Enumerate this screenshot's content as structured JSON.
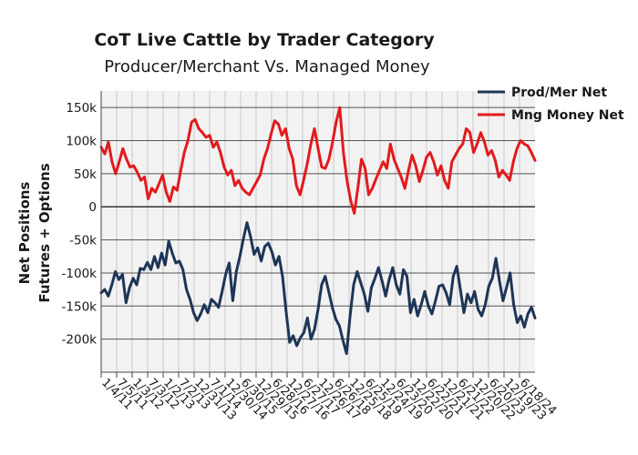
{
  "chart_data": {
    "type": "line",
    "title": "CoT Live Cattle by Trader Category",
    "subtitle": "Producer/Merchant Vs. Managed Money",
    "ylabel_lines": [
      "Net Positions",
      "Futures + Options"
    ],
    "xlabel": "",
    "ylim": [
      -250000,
      175000
    ],
    "y_ticks": [
      150000,
      100000,
      50000,
      0,
      -50000,
      -100000,
      -150000,
      -200000
    ],
    "y_tick_labels": [
      "150k",
      "100k",
      "50k",
      "0",
      "-50k",
      "-100k",
      "-150k",
      "-200k"
    ],
    "x_tick_labels": [
      "1/4/11",
      "7/5/11",
      "1/3/12",
      "7/3/12",
      "1/2/13",
      "7/2/13",
      "12/31/13",
      "7/1/14",
      "12/30/14",
      "6/30/15",
      "12/29/15",
      "6/28/16",
      "12/27/16",
      "6/27/17",
      "12/26/17",
      "6/26/18",
      "12/25/18",
      "6/25/19",
      "12/24/19",
      "6/23/20",
      "12/22/20",
      "6/22/21",
      "12/21/21",
      "6/21/22",
      "12/20/22",
      "6/20/23",
      "12/19/23",
      "6/18/24"
    ],
    "grid": true,
    "legend_position": "top-right",
    "series": [
      {
        "name": "Prod/Mer Net",
        "color": "#1d3557",
        "values": [
          -130000,
          -125000,
          -135000,
          -118000,
          -98000,
          -110000,
          -102000,
          -145000,
          -122000,
          -108000,
          -118000,
          -93000,
          -95000,
          -84000,
          -95000,
          -75000,
          -92000,
          -70000,
          -88000,
          -52000,
          -70000,
          -85000,
          -82000,
          -95000,
          -125000,
          -140000,
          -160000,
          -172000,
          -162000,
          -148000,
          -160000,
          -140000,
          -145000,
          -152000,
          -128000,
          -102000,
          -85000,
          -142000,
          -98000,
          -75000,
          -48000,
          -24000,
          -45000,
          -72000,
          -62000,
          -82000,
          -60000,
          -55000,
          -68000,
          -88000,
          -75000,
          -105000,
          -158000,
          -205000,
          -195000,
          -210000,
          -198000,
          -190000,
          -168000,
          -200000,
          -185000,
          -155000,
          -118000,
          -105000,
          -128000,
          -152000,
          -170000,
          -180000,
          -202000,
          -222000,
          -165000,
          -118000,
          -98000,
          -115000,
          -132000,
          -158000,
          -122000,
          -108000,
          -92000,
          -112000,
          -135000,
          -110000,
          -92000,
          -118000,
          -132000,
          -95000,
          -105000,
          -160000,
          -140000,
          -165000,
          -148000,
          -128000,
          -150000,
          -162000,
          -142000,
          -120000,
          -118000,
          -130000,
          -148000,
          -105000,
          -90000,
          -125000,
          -160000,
          -132000,
          -145000,
          -128000,
          -155000,
          -165000,
          -148000,
          -120000,
          -108000,
          -78000,
          -112000,
          -142000,
          -122000,
          -100000,
          -148000,
          -175000,
          -165000,
          -182000,
          -162000,
          -152000,
          -168000
        ]
      },
      {
        "name": "Mng Money Net",
        "color": "#e31a1c",
        "values": [
          90000,
          80000,
          98000,
          68000,
          50000,
          68000,
          88000,
          72000,
          60000,
          62000,
          52000,
          40000,
          45000,
          12000,
          28000,
          22000,
          35000,
          48000,
          22000,
          8000,
          30000,
          25000,
          55000,
          82000,
          100000,
          128000,
          132000,
          118000,
          112000,
          105000,
          108000,
          90000,
          98000,
          82000,
          60000,
          48000,
          55000,
          32000,
          40000,
          28000,
          22000,
          18000,
          28000,
          38000,
          48000,
          72000,
          88000,
          110000,
          130000,
          125000,
          108000,
          118000,
          88000,
          72000,
          32000,
          18000,
          40000,
          65000,
          95000,
          118000,
          88000,
          60000,
          58000,
          72000,
          98000,
          128000,
          150000,
          82000,
          40000,
          10000,
          -10000,
          28000,
          72000,
          58000,
          18000,
          28000,
          42000,
          55000,
          68000,
          58000,
          95000,
          72000,
          58000,
          45000,
          28000,
          55000,
          78000,
          62000,
          38000,
          55000,
          75000,
          82000,
          68000,
          48000,
          62000,
          40000,
          28000,
          68000,
          78000,
          88000,
          95000,
          118000,
          112000,
          82000,
          95000,
          112000,
          98000,
          78000,
          85000,
          70000,
          45000,
          55000,
          48000,
          40000,
          68000,
          88000,
          100000,
          95000,
          92000,
          82000,
          70000
        ]
      }
    ]
  }
}
